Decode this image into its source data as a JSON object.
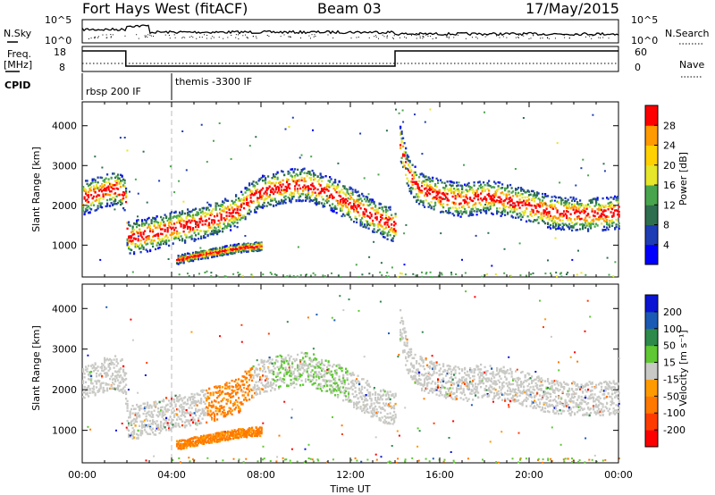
{
  "header": {
    "radar_title": "Fort Hays West (fitACF)",
    "beam": "Beam 03",
    "date": "17/May/2015"
  },
  "params_panel": {
    "nsky_label": "N.Sky",
    "nsky_ticks": [
      "10^5",
      "10^0"
    ],
    "nsearch_label": "N.Search",
    "nsearch_ticks": [
      "10^5",
      "10^0"
    ],
    "freq_label_line1": "Freq.",
    "freq_label_line2": "[MHz]",
    "freq_ticks": [
      "18",
      "8"
    ],
    "nave_label": "Nave",
    "nave_ticks": [
      "60",
      "0"
    ],
    "cpid_label": "CPID",
    "cpid_modes": [
      {
        "label": "rbsp 200 IF",
        "start_hour": 0
      },
      {
        "label": "themis -3300 IF",
        "start_hour": 4
      }
    ],
    "freq_segments": [
      {
        "start_hour": 0,
        "end_hour": 1.95,
        "level": "high"
      },
      {
        "start_hour": 1.95,
        "end_hour": 14.0,
        "level": "low"
      },
      {
        "start_hour": 14.0,
        "end_hour": 24,
        "level": "high"
      }
    ]
  },
  "chart_data": [
    {
      "type": "heatmap",
      "panel": "power",
      "ylabel": "Slant Range [km]",
      "ylim": [
        200,
        4600
      ],
      "yticks": [
        1000,
        2000,
        3000,
        4000
      ],
      "xlim": [
        0,
        24
      ],
      "colorbar": {
        "label": "Power [dB]",
        "ticks": [
          "4",
          "8",
          "12",
          "16",
          "20",
          "24",
          "28"
        ],
        "range": [
          0,
          32
        ],
        "colors": [
          "#0000ff",
          "#1e3cb4",
          "#2f6e4e",
          "#49a54d",
          "#e6e62a",
          "#ff9a00",
          "#ff0000"
        ]
      },
      "echo_bands": [
        {
          "name": "main-band",
          "points": [
            [
              0.0,
              2200
            ],
            [
              0.5,
              2300
            ],
            [
              1.0,
              2400
            ],
            [
              1.5,
              2450
            ],
            [
              1.9,
              2300
            ],
            [
              2.0,
              1200
            ],
            [
              3.0,
              1300
            ],
            [
              4.0,
              1450
            ],
            [
              5.0,
              1550
            ],
            [
              6.0,
              1700
            ],
            [
              7.0,
              1900
            ],
            [
              7.5,
              2200
            ],
            [
              8.0,
              2350
            ],
            [
              9.0,
              2500
            ],
            [
              10.0,
              2550
            ],
            [
              11.0,
              2350
            ],
            [
              12.0,
              2050
            ],
            [
              13.0,
              1750
            ],
            [
              14.0,
              1500
            ]
          ]
        },
        {
          "name": "post-gap-band",
          "points": [
            [
              14.2,
              3600
            ],
            [
              14.5,
              2900
            ],
            [
              15.0,
              2450
            ],
            [
              16.0,
              2250
            ],
            [
              17.0,
              2150
            ],
            [
              18.0,
              2250
            ],
            [
              19.0,
              2150
            ],
            [
              20.0,
              2000
            ],
            [
              21.0,
              1850
            ],
            [
              22.0,
              1800
            ],
            [
              23.0,
              1800
            ],
            [
              24.0,
              1850
            ]
          ]
        },
        {
          "name": "lower-band",
          "points": [
            [
              4.2,
              650
            ],
            [
              5.0,
              750
            ],
            [
              6.0,
              850
            ],
            [
              7.0,
              950
            ],
            [
              8.0,
              1000
            ]
          ]
        }
      ]
    },
    {
      "type": "heatmap",
      "panel": "velocity",
      "ylabel": "Slant Range [km]",
      "xlabel": "Time UT",
      "ylim": [
        200,
        4600
      ],
      "yticks": [
        1000,
        2000,
        3000,
        4000
      ],
      "xlim": [
        0,
        24
      ],
      "xticks": [
        "00:00",
        "04:00",
        "08:00",
        "12:00",
        "16:00",
        "20:00",
        "00:00"
      ],
      "colorbar": {
        "label": "Velocity [m s⁻¹]",
        "ticks": [
          "200",
          "100",
          "50",
          "15",
          "-15",
          "-50",
          "-100",
          "-200"
        ],
        "colors": [
          "#0a14d2",
          "#1b5ab4",
          "#2e8a4a",
          "#5fc832",
          "#c9c9c5",
          "#ff9b00",
          "#ff7800",
          "#ff3c00",
          "#ff0000"
        ]
      },
      "dominant_value": "-15 to 15 (grey)",
      "ground_scatter_color": "#c9c9c5"
    }
  ]
}
